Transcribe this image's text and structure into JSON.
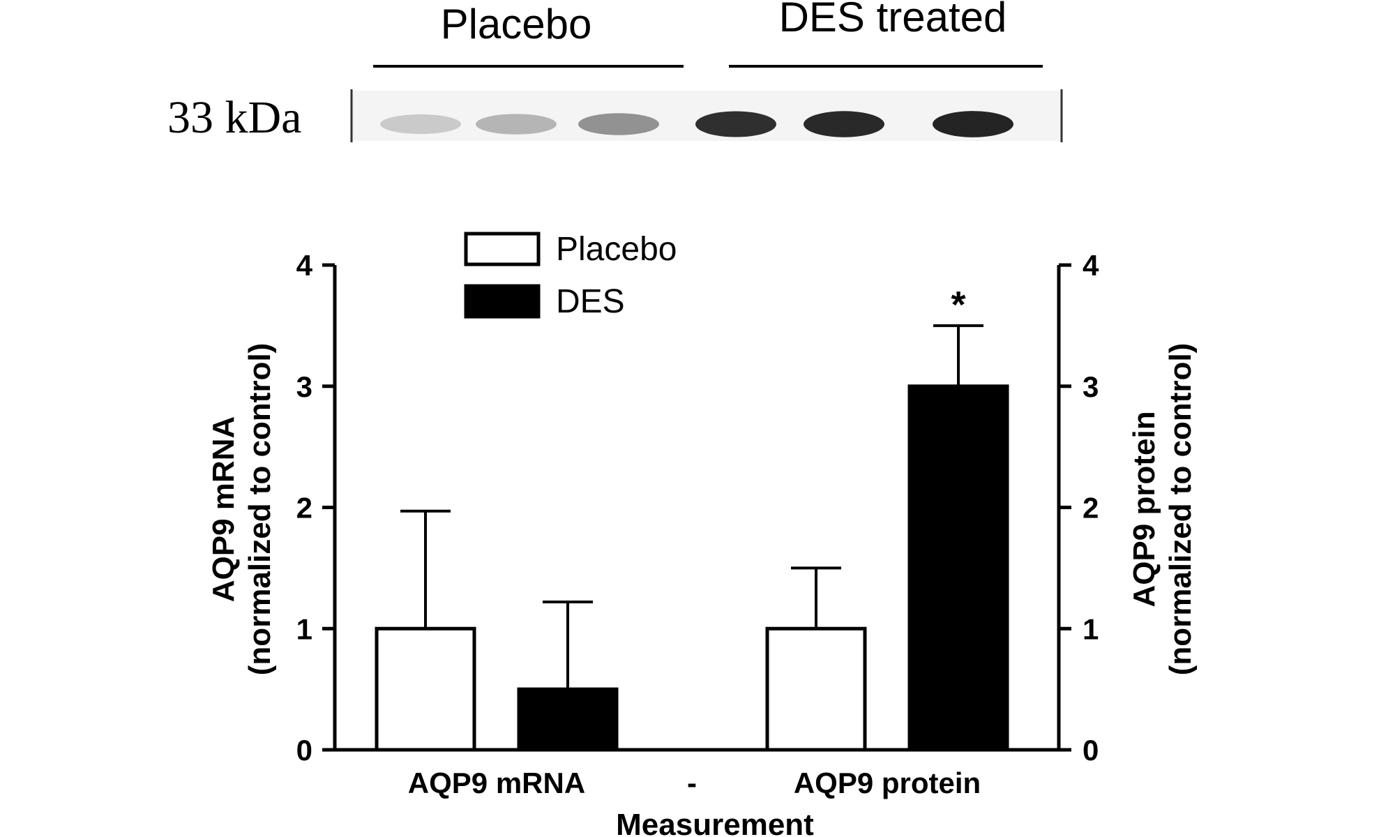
{
  "blot": {
    "group_labels": [
      "Placebo",
      "DES treated"
    ],
    "size_marker": "33 kDa",
    "band_intensity": [
      0.18,
      0.28,
      0.45,
      0.92,
      0.95,
      0.97
    ]
  },
  "chart_data": {
    "type": "bar",
    "title": "",
    "xlabel": "Measurement",
    "categories": [
      "AQP9 mRNA",
      "-",
      "AQP9 protein"
    ],
    "ylabel": "AQP9 mRNA\n(normalized to control)",
    "ylabel_right": "AQP9 protein\n(normalized to control)",
    "ylim": [
      0,
      4
    ],
    "yticks": [
      0,
      1,
      2,
      3,
      4
    ],
    "legend": {
      "position": "top-left",
      "entries": [
        "Placebo",
        "DES"
      ]
    },
    "series": [
      {
        "name": "Placebo",
        "color": "#ffffff",
        "values": [
          1.0,
          null,
          1.0
        ],
        "errors": [
          0.97,
          null,
          0.5
        ]
      },
      {
        "name": "DES",
        "color": "#000000",
        "values": [
          0.5,
          null,
          3.0
        ],
        "errors": [
          0.72,
          null,
          0.5
        ]
      }
    ],
    "annotations": [
      {
        "text": "*",
        "category": "AQP9 protein",
        "series": "DES"
      }
    ],
    "grid": false
  }
}
